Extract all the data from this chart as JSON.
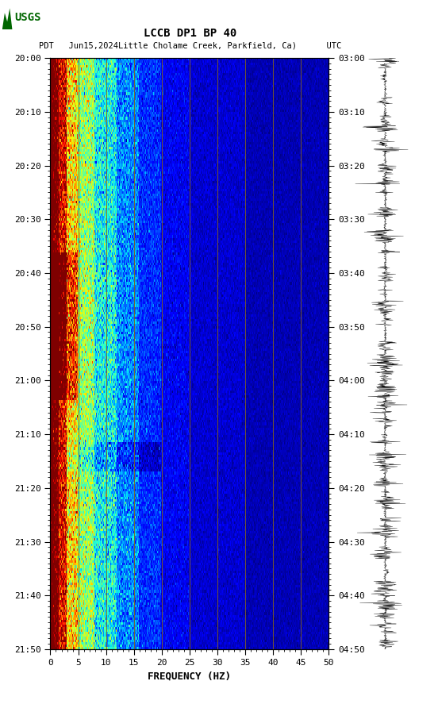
{
  "title_line1": "LCCB DP1 BP 40",
  "title_line2": "PDT   Jun15,2024Little Cholame Creek, Parkfield, Ca)      UTC",
  "xlabel": "FREQUENCY (HZ)",
  "freq_min": 0,
  "freq_max": 50,
  "freq_ticks": [
    0,
    5,
    10,
    15,
    20,
    25,
    30,
    35,
    40,
    45,
    50
  ],
  "time_ticks_pdt": [
    "20:00",
    "20:10",
    "20:20",
    "20:30",
    "20:40",
    "20:50",
    "21:00",
    "21:10",
    "21:20",
    "21:30",
    "21:40",
    "21:50"
  ],
  "time_ticks_utc": [
    "03:00",
    "03:10",
    "03:20",
    "03:30",
    "03:40",
    "03:50",
    "04:00",
    "04:10",
    "04:20",
    "04:30",
    "04:40",
    "04:50"
  ],
  "vline_color": "#806020",
  "vline_freqs": [
    5,
    10,
    15,
    20,
    25,
    30,
    35,
    40,
    45
  ],
  "title_fontsize": 10,
  "tick_fontsize": 8,
  "label_fontsize": 9,
  "usgs_green": "#006600"
}
